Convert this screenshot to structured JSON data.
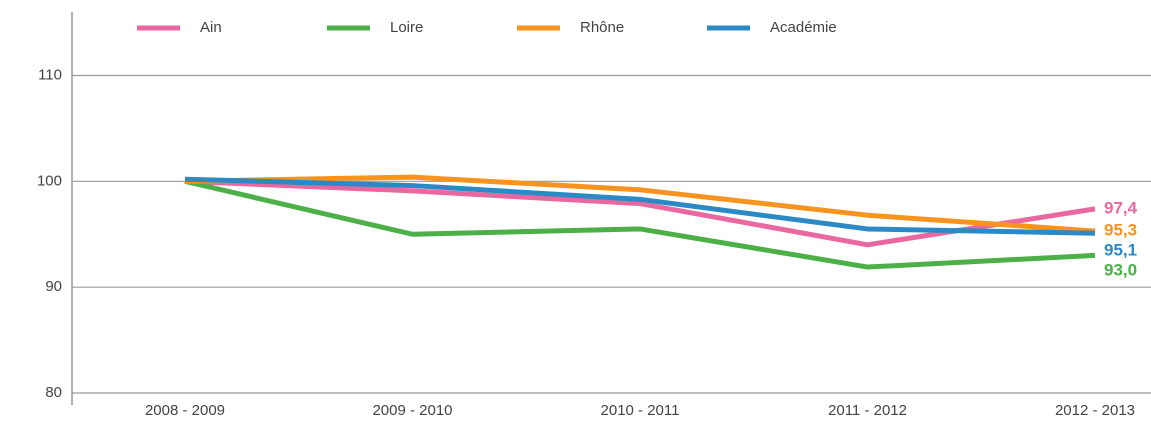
{
  "chart_data": {
    "type": "line",
    "categories": [
      "2008 - 2009",
      "2009 - 2010",
      "2010 - 2011",
      "2011 - 2012",
      "2012 - 2013"
    ],
    "series": [
      {
        "name": "Ain",
        "color": "#e8689f",
        "values": [
          100,
          99.1,
          97.9,
          94.0,
          97.4
        ],
        "value_labels": [
          null,
          null,
          null,
          null,
          "97,4"
        ]
      },
      {
        "name": "Loire",
        "color": "#4caf47",
        "values": [
          100,
          95.0,
          95.5,
          91.9,
          93.0
        ],
        "value_labels": [
          null,
          null,
          null,
          null,
          "93,0"
        ]
      },
      {
        "name": "Rhône",
        "color": "#f7931e",
        "values": [
          100,
          100.4,
          99.2,
          96.8,
          95.3
        ],
        "value_labels": [
          null,
          null,
          null,
          null,
          "95,3"
        ]
      },
      {
        "name": "Académie",
        "color": "#2b8ac6",
        "values": [
          100.2,
          99.6,
          98.3,
          95.5,
          95.1
        ],
        "value_labels": [
          null,
          null,
          null,
          null,
          "95,1"
        ]
      }
    ],
    "ylim": [
      80,
      116
    ],
    "yticks": [
      80,
      90,
      100,
      110
    ],
    "grid": true,
    "legend": "top"
  }
}
